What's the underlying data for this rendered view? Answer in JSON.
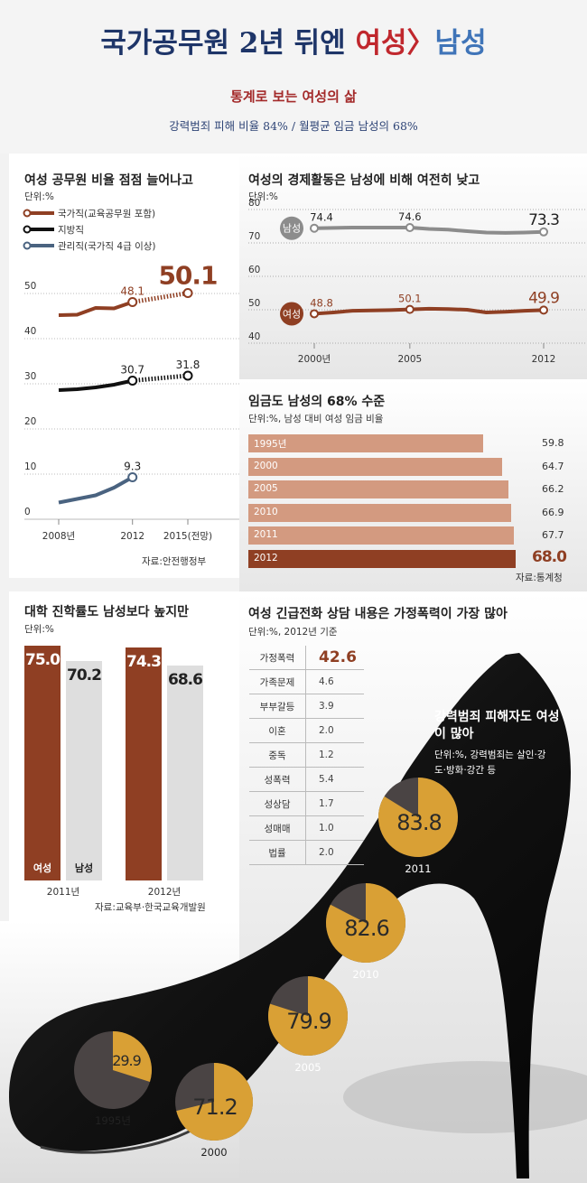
{
  "header": {
    "title_a": "국가공무원  2년 뒤엔 ",
    "title_b": "여성",
    "title_c": "〉",
    "title_d": "남성",
    "subtitle": "통계로 보는 여성의 삶",
    "summary": "강력범죄 피해 비율 84%  /  월평균 임금 남성의 68%"
  },
  "colors": {
    "brown": "#8f3f23",
    "black": "#111111",
    "slate": "#4a6380",
    "gray": "#8c8c8c",
    "gold": "#d9a035",
    "salmon": "#d39a80"
  },
  "chart_data": [
    {
      "id": "civil",
      "type": "line",
      "title": "여성 공무원 비율 점점 늘어나고",
      "unit": "단위:%",
      "source": "자료:안전행정부",
      "x_ticks": [
        "2008년",
        "2012",
        "2015(전망)"
      ],
      "y_ticks": [
        "0",
        "10",
        "20",
        "30",
        "40",
        "50"
      ],
      "ylim": [
        0,
        55
      ],
      "legend": [
        "국가직(교육공무원 포함)",
        "지방직",
        "관리직(국가직 4급 이상)"
      ],
      "series": [
        {
          "name": "국가직(교육공무원 포함)",
          "color": "#8f3f23",
          "x": [
            2008,
            2009,
            2010,
            2011,
            2012
          ],
          "y": [
            45.2,
            45.3,
            46.8,
            46.7,
            48.1
          ],
          "projection": {
            "x": [
              2012,
              2015
            ],
            "y": [
              48.1,
              50.1
            ]
          },
          "labels": {
            "2012": "48.1",
            "2015": "50.1"
          }
        },
        {
          "name": "지방직",
          "color": "#111111",
          "x": [
            2008,
            2009,
            2010,
            2011,
            2012
          ],
          "y": [
            28.6,
            28.8,
            29.2,
            29.8,
            30.7
          ],
          "projection": {
            "x": [
              2012,
              2015
            ],
            "y": [
              30.7,
              31.8
            ]
          },
          "labels": {
            "2012": "30.7",
            "2015": "31.8"
          }
        },
        {
          "name": "관리직(국가직 4급 이상)",
          "color": "#4a6380",
          "x": [
            2008,
            2009,
            2010,
            2011,
            2012
          ],
          "y": [
            3.7,
            4.5,
            5.3,
            7.0,
            9.3
          ],
          "labels": {
            "2012": "9.3"
          }
        }
      ]
    },
    {
      "id": "econ",
      "type": "line",
      "title": "여성의 경제활동은 남성에 비해 여전히 낮고",
      "unit": "단위:%",
      "x_ticks": [
        "2000년",
        "2005",
        "2012"
      ],
      "y_ticks": [
        "40",
        "50",
        "60",
        "70",
        "80"
      ],
      "ylim": [
        40,
        80
      ],
      "series": [
        {
          "name": "남성",
          "color": "#8c8c8c",
          "x": [
            2000,
            2001,
            2002,
            2003,
            2004,
            2005,
            2006,
            2007,
            2008,
            2009,
            2010,
            2011,
            2012
          ],
          "y": [
            74.4,
            74.5,
            74.6,
            74.6,
            74.6,
            74.6,
            74.2,
            74.0,
            73.5,
            73.1,
            73.0,
            73.1,
            73.3
          ],
          "labels": {
            "2000": "74.4",
            "2005": "74.6",
            "2012": "73.3"
          }
        },
        {
          "name": "여성",
          "color": "#8f3f23",
          "x": [
            2000,
            2001,
            2002,
            2003,
            2004,
            2005,
            2006,
            2007,
            2008,
            2009,
            2010,
            2011,
            2012
          ],
          "y": [
            48.8,
            49.2,
            49.7,
            49.8,
            49.9,
            50.1,
            50.3,
            50.2,
            50.0,
            49.2,
            49.4,
            49.7,
            49.9
          ],
          "labels": {
            "2000": "48.8",
            "2005": "50.1",
            "2012": "49.9"
          }
        }
      ]
    },
    {
      "id": "wage",
      "type": "bar",
      "title": "임금도 남성의 68% 수준",
      "unit": "단위:%, 남성 대비 여성 임금 비율",
      "source": "자료:통계청",
      "categories": [
        "1995년",
        "2000",
        "2005",
        "2010",
        "2011",
        "2012"
      ],
      "values": [
        59.8,
        64.7,
        66.2,
        66.9,
        67.7,
        68.0
      ],
      "value_labels": [
        "59.8",
        "64.7",
        "66.2",
        "66.9",
        "67.7",
        "68.0"
      ]
    },
    {
      "id": "college",
      "type": "bar",
      "title": "대학 진학률도 남성보다 높지만",
      "unit": "단위:%",
      "source": "자료:교육부·한국교육개발원",
      "categories": [
        "2011년",
        "2012년"
      ],
      "series_labels": [
        "여성",
        "남성"
      ],
      "series": [
        {
          "name": "여성",
          "values": [
            75.0,
            74.3
          ],
          "labels": [
            "75.0",
            "74.3"
          ]
        },
        {
          "name": "남성",
          "values": [
            70.2,
            68.6
          ],
          "labels": [
            "70.2",
            "68.6"
          ]
        }
      ]
    },
    {
      "id": "hotline",
      "type": "table",
      "title": "여성 긴급전화 상담 내용은  가정폭력이 가장 많아",
      "unit": "단위:%, 2012년 기준",
      "rows": [
        {
          "k": "가정폭력",
          "v": "42.6"
        },
        {
          "k": "가족문제",
          "v": "4.6"
        },
        {
          "k": "부부갈등",
          "v": "3.9"
        },
        {
          "k": "이혼",
          "v": "2.0"
        },
        {
          "k": "중독",
          "v": "1.2"
        },
        {
          "k": "성폭력",
          "v": "5.4"
        },
        {
          "k": "성상담",
          "v": "1.7"
        },
        {
          "k": "성매매",
          "v": "1.0"
        },
        {
          "k": "법률",
          "v": "2.0"
        }
      ]
    },
    {
      "id": "crime",
      "type": "pie",
      "title": "강력범죄 피해자도 여성이 많아",
      "unit": "단위:%, 강력범죄는 살인·강도·방화·강간 등",
      "items": [
        {
          "year": "1995년",
          "value": 29.9,
          "label": "29.9"
        },
        {
          "year": "2000",
          "value": 71.2,
          "label": "71.2"
        },
        {
          "year": "2005",
          "value": 79.9,
          "label": "79.9"
        },
        {
          "year": "2010",
          "value": 82.6,
          "label": "82.6"
        },
        {
          "year": "2011",
          "value": 83.8,
          "label": "83.8"
        }
      ]
    }
  ]
}
